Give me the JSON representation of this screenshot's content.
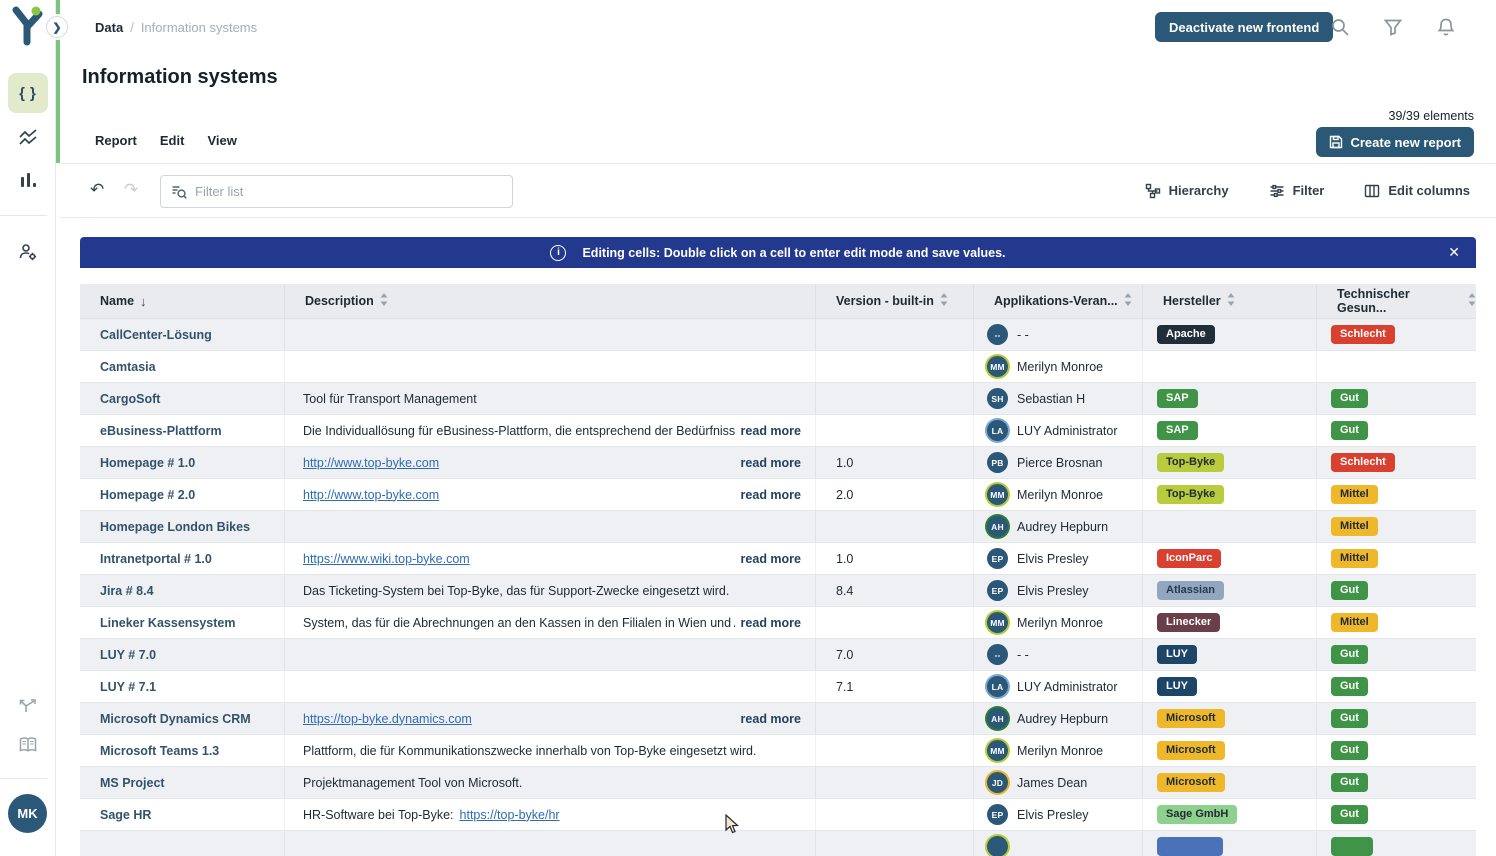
{
  "colors": {
    "accent_green": "#7cc47f",
    "button_navy": "#2b5876",
    "banner_blue": "#23398e",
    "link_blue": "#2e6cb5",
    "name_text": "#33536b",
    "row_alt": "#eef0f3"
  },
  "sidebar": {
    "icons": [
      "code-icon",
      "chart-line-icon",
      "chart-bar-icon",
      "user-settings-icon",
      "branch-icon",
      "documentation-icon"
    ],
    "selected_icon": "code-icon",
    "user_initials": "MK"
  },
  "header": {
    "breadcrumb": {
      "parent": "Data",
      "separator": "/",
      "current": "Information systems"
    },
    "deactivate_button": "Deactivate new frontend"
  },
  "page": {
    "title": "Information systems",
    "tabs": [
      "Report",
      "Edit",
      "View"
    ],
    "elements_count": "39/39 elements",
    "create_report_button": "Create new report"
  },
  "toolbar": {
    "filter_placeholder": "Filter list",
    "hierarchy_label": "Hierarchy",
    "filter_label": "Filter",
    "edit_columns_label": "Edit columns"
  },
  "banner": {
    "label_bold": "Editing cells:",
    "label_text": "Double click on a cell to enter edit mode and save values."
  },
  "table": {
    "read_more_label": "read more",
    "columns": [
      {
        "label": "Name",
        "sort": "desc"
      },
      {
        "label": "Description",
        "sort": "none"
      },
      {
        "label": "Version - built-in",
        "sort": "none"
      },
      {
        "label": "Applikations-Veran...",
        "sort": "none"
      },
      {
        "label": "Hersteller",
        "sort": "none"
      },
      {
        "label": "Technischer Gesun...",
        "sort": "none"
      }
    ],
    "rows": [
      {
        "name": "CallCenter-Lösung",
        "description": null,
        "version": "",
        "owner": {
          "initials": "--",
          "name": "- -",
          "ring": null
        },
        "vendor": {
          "label": "Apache",
          "bg": "#222d3a",
          "fg": "#ffffff"
        },
        "health": {
          "label": "Schlecht",
          "bg": "#d9402f",
          "fg": "#ffffff"
        }
      },
      {
        "name": "Camtasia",
        "description": null,
        "version": "",
        "owner": {
          "initials": "MM",
          "name": "Merilyn Monroe",
          "ring": "#b5cc34"
        },
        "vendor": null,
        "health": null
      },
      {
        "name": "CargoSoft",
        "description": {
          "text": "Tool für Transport Management"
        },
        "version": "",
        "owner": {
          "initials": "SH",
          "name": "Sebastian H",
          "ring": null
        },
        "vendor": {
          "label": "SAP",
          "bg": "#3f9447",
          "fg": "#ffffff"
        },
        "health": {
          "label": "Gut",
          "bg": "#3f9447",
          "fg": "#ffffff"
        }
      },
      {
        "name": "eBusiness-Plattform",
        "description": {
          "text": "Die Individuallösung für eBusiness-Plattform, die entsprechend der Bedürfniss...",
          "read_more": true
        },
        "version": "",
        "owner": {
          "initials": "LA",
          "name": "LUY Administrator",
          "ring": "#7aa9d8"
        },
        "vendor": {
          "label": "SAP",
          "bg": "#3f9447",
          "fg": "#ffffff"
        },
        "health": {
          "label": "Gut",
          "bg": "#3f9447",
          "fg": "#ffffff"
        }
      },
      {
        "name": "Homepage # 1.0",
        "description": {
          "link": "http://www.top-byke.com",
          "read_more": true
        },
        "version": "1.0",
        "owner": {
          "initials": "PB",
          "name": "Pierce Brosnan",
          "ring": null
        },
        "vendor": {
          "label": "Top-Byke",
          "bg": "#b8cc3d",
          "fg": "#222b33"
        },
        "health": {
          "label": "Schlecht",
          "bg": "#d9402f",
          "fg": "#ffffff"
        }
      },
      {
        "name": "Homepage # 2.0",
        "description": {
          "link": "http://www.top-byke.com",
          "read_more": true
        },
        "version": "2.0",
        "owner": {
          "initials": "MM",
          "name": "Merilyn Monroe",
          "ring": "#b5cc34"
        },
        "vendor": {
          "label": "Top-Byke",
          "bg": "#b8cc3d",
          "fg": "#222b33"
        },
        "health": {
          "label": "Mittel",
          "bg": "#efb82a",
          "fg": "#222b33"
        }
      },
      {
        "name": "Homepage London Bikes",
        "description": null,
        "version": "",
        "owner": {
          "initials": "AH",
          "name": "Audrey Hepburn",
          "ring": "#2e7d32"
        },
        "vendor": null,
        "health": {
          "label": "Mittel",
          "bg": "#efb82a",
          "fg": "#222b33"
        }
      },
      {
        "name": "Intranetportal # 1.0",
        "description": {
          "link": "https://www.wiki.top-byke.com",
          "read_more": true
        },
        "version": "1.0",
        "owner": {
          "initials": "EP",
          "name": "Elvis Presley",
          "ring": null
        },
        "vendor": {
          "label": "IconParc",
          "bg": "#d9402f",
          "fg": "#ffffff"
        },
        "health": {
          "label": "Mittel",
          "bg": "#efb82a",
          "fg": "#222b33"
        }
      },
      {
        "name": "Jira # 8.4",
        "description": {
          "text": "Das Ticketing-System bei Top-Byke, das für Support-Zwecke eingesetzt wird."
        },
        "version": "8.4",
        "owner": {
          "initials": "EP",
          "name": "Elvis Presley",
          "ring": null
        },
        "vendor": {
          "label": "Atlassian",
          "bg": "#92a7bd",
          "fg": "#243a4f"
        },
        "health": {
          "label": "Gut",
          "bg": "#3f9447",
          "fg": "#ffffff"
        }
      },
      {
        "name": "Lineker Kassensystem",
        "description": {
          "text": "System, das für die Abrechnungen an den Kassen in den Filialen in Wien und A...",
          "read_more": true
        },
        "version": "",
        "owner": {
          "initials": "MM",
          "name": "Merilyn Monroe",
          "ring": "#b5cc34"
        },
        "vendor": {
          "label": "Linecker",
          "bg": "#6b3f49",
          "fg": "#ffffff"
        },
        "health": {
          "label": "Mittel",
          "bg": "#efb82a",
          "fg": "#222b33"
        }
      },
      {
        "name": "LUY # 7.0",
        "description": null,
        "version": "7.0",
        "owner": {
          "initials": "--",
          "name": "- -",
          "ring": null
        },
        "vendor": {
          "label": "LUY",
          "bg": "#1d4568",
          "fg": "#ffffff"
        },
        "health": {
          "label": "Gut",
          "bg": "#3f9447",
          "fg": "#ffffff"
        }
      },
      {
        "name": "LUY # 7.1",
        "description": null,
        "version": "7.1",
        "owner": {
          "initials": "LA",
          "name": "LUY Administrator",
          "ring": "#7aa9d8"
        },
        "vendor": {
          "label": "LUY",
          "bg": "#1d4568",
          "fg": "#ffffff"
        },
        "health": {
          "label": "Gut",
          "bg": "#3f9447",
          "fg": "#ffffff"
        }
      },
      {
        "name": "Microsoft Dynamics CRM",
        "description": {
          "link": "https://top-byke.dynamics.com",
          "read_more": true
        },
        "version": "",
        "owner": {
          "initials": "AH",
          "name": "Audrey Hepburn",
          "ring": "#2e7d32"
        },
        "vendor": {
          "label": "Microsoft",
          "bg": "#efb82a",
          "fg": "#222b33"
        },
        "health": {
          "label": "Gut",
          "bg": "#3f9447",
          "fg": "#ffffff"
        }
      },
      {
        "name": "Microsoft Teams 1.3",
        "description": {
          "text": "Plattform, die für Kommunikationszwecke innerhalb von Top-Byke eingesetzt wird."
        },
        "version": "",
        "owner": {
          "initials": "MM",
          "name": "Merilyn Monroe",
          "ring": "#b5cc34"
        },
        "vendor": {
          "label": "Microsoft",
          "bg": "#efb82a",
          "fg": "#222b33"
        },
        "health": {
          "label": "Gut",
          "bg": "#3f9447",
          "fg": "#ffffff"
        }
      },
      {
        "name": "MS Project",
        "description": {
          "text": "Projektmanagement Tool von Microsoft."
        },
        "version": "",
        "owner": {
          "initials": "JD",
          "name": "James Dean",
          "ring": "#e8b62a"
        },
        "vendor": {
          "label": "Microsoft",
          "bg": "#efb82a",
          "fg": "#222b33"
        },
        "health": {
          "label": "Gut",
          "bg": "#3f9447",
          "fg": "#ffffff"
        }
      },
      {
        "name": "Sage HR",
        "description": {
          "prefix": "HR-Software bei Top-Byke: ",
          "link": "https://top-byke/hr"
        },
        "version": "",
        "owner": {
          "initials": "EP",
          "name": "Elvis Presley",
          "ring": null
        },
        "vendor": {
          "label": "Sage GmbH",
          "bg": "#8ed08e",
          "fg": "#222b33"
        },
        "health": {
          "label": "Gut",
          "bg": "#3f9447",
          "fg": "#ffffff"
        }
      },
      {
        "partial": true,
        "name": "",
        "description": null,
        "version": "",
        "owner": {
          "initials": "",
          "name": "",
          "ring": "#b5cc34"
        },
        "vendor": {
          "label": "",
          "bg": "#4a72b8",
          "fg": "#ffffff"
        },
        "health": {
          "label": "",
          "bg": "#3f9447",
          "fg": "#ffffff"
        }
      }
    ]
  }
}
